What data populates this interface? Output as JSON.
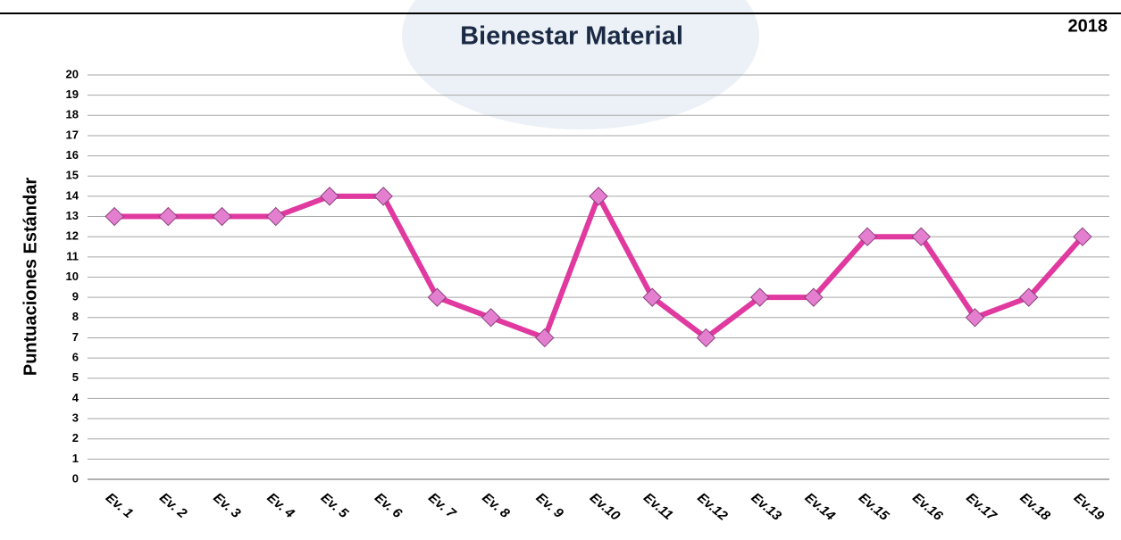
{
  "chart_data": {
    "type": "line",
    "title": "Bienestar Material",
    "subtitle": "2018",
    "y_label": "Puntuaciones Estándar",
    "categories": [
      "Ev. 1",
      "Ev. 2",
      "Ev. 3",
      "Ev. 4",
      "Ev. 5",
      "Ev. 6",
      "Ev. 7",
      "Ev. 8",
      "Ev. 9",
      "Ev.10",
      "Ev.11",
      "Ev.12",
      "Ev.13",
      "Ev.14",
      "Ev.15",
      "Ev.16",
      "Ev.17",
      "Ev.18",
      "Ev.19"
    ],
    "values": [
      13,
      13,
      13,
      13,
      14,
      14,
      9,
      8,
      7,
      14,
      9,
      7,
      9,
      9,
      12,
      12,
      8,
      9,
      12
    ],
    "color": "#e0399f",
    "marker_color": "#e47fd0",
    "ylim": [
      0,
      20
    ],
    "yticks": [
      0,
      1,
      2,
      3,
      4,
      5,
      6,
      7,
      8,
      9,
      10,
      11,
      12,
      13,
      14,
      15,
      16,
      17,
      18,
      19,
      20
    ],
    "grid": true
  }
}
